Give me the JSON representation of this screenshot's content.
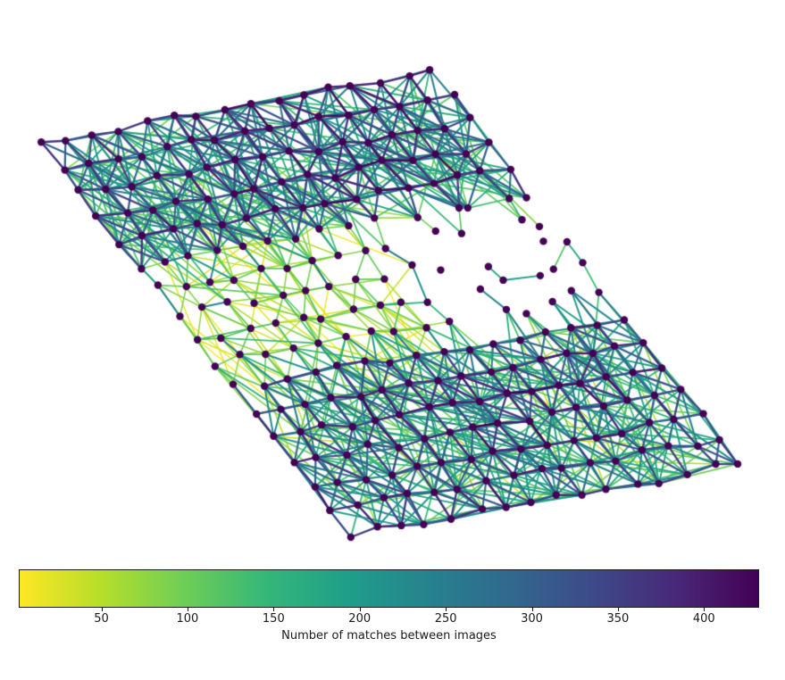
{
  "figure": {
    "background": "#ffffff"
  },
  "chart_data": {
    "type": "scatter",
    "subtype": "spatial_network_graph",
    "title": "",
    "axes_visible": false,
    "legend": null,
    "description_of_content": "Graph of image locations (dark purple nodes) connected by edges colored by number of feature matches; dense dark band across the top, sparse low-match lattice and isolated pairs in the middle, dense mixed band across the bottom; whole point set is sheared like a flight-grid.",
    "colorbar": {
      "label": "Number of matches between images",
      "orientation": "horizontal",
      "ticks": [
        50,
        100,
        150,
        200,
        250,
        300,
        350,
        400
      ],
      "vmin": 2,
      "vmax": 432,
      "colormap": "viridis_reversed_low_yellow_high_purple",
      "gradient_stops_low_to_high": [
        "#fde725",
        "#b5de2b",
        "#6ece58",
        "#35b779",
        "#1f9e89",
        "#26828e",
        "#31688e",
        "#3e4989",
        "#482878",
        "#440154"
      ]
    },
    "node_style": {
      "color": "#440154",
      "radius": 4.2
    },
    "edge_width": {
      "min": 1.4,
      "scale": 1.2
    },
    "graph_generator": {
      "seed": 13,
      "rows": 17,
      "cols": 16,
      "origin": [
        48,
        160
      ],
      "row_step": [
        29,
        -5.3
      ],
      "col_step": [
        21.5,
        27.5
      ],
      "jitter": 6,
      "sparse": {
        "col_min": 9,
        "row_min": 5,
        "row_max": 9,
        "drop_probability": 0.32,
        "extra_jitter": 6
      },
      "neighbor_max_dist": 3.25,
      "value_clamp": [
        3,
        431
      ],
      "bands": {
        "top": {
          "row_max": 4.5,
          "p": [
            0.95,
            0.7,
            0.45
          ],
          "base": 460,
          "slope": 110,
          "noise": 60,
          "core": {
            "rows": [
              0,
              4
            ],
            "cols": [
              5,
              13
            ],
            "bonus": 35
          }
        },
        "mid": {
          "row_max": 9.5,
          "p": [
            0.8,
            0.38,
            0.13
          ],
          "base": 150,
          "slope": 45,
          "noise": 30,
          "teal_probability": 0.07,
          "teal_bonus": 120
        },
        "mid_sparse": {
          "p": [
            0.3,
            0.03,
            0.0
          ],
          "base": 260,
          "slope": 90,
          "noise": 90
        },
        "bottom": {
          "p": [
            0.95,
            0.65,
            0.4
          ],
          "base": 450,
          "slope": 112,
          "noise": 70,
          "core": {
            "rows": [
              11,
              14
            ],
            "cols": [
              4,
              13
            ],
            "bonus": 35
          }
        }
      }
    }
  }
}
